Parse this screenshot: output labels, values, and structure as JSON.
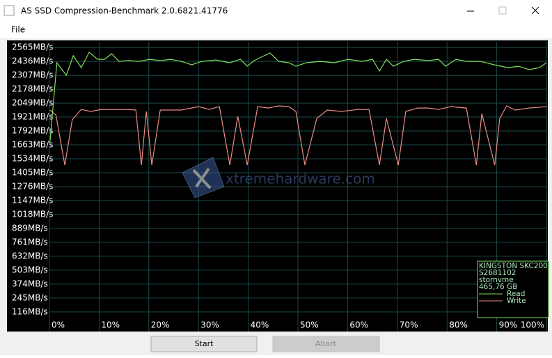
{
  "window": {
    "title": "AS SSD Compression-Benchmark 2.0.6821.41776",
    "menu": [
      "File"
    ],
    "buttons": [
      "Start",
      "Abort"
    ]
  },
  "chart_data": {
    "type": "line",
    "ylim": [
      51,
      2617
    ],
    "yticks": [
      {
        "value": 2565,
        "label": "2565MB/s"
      },
      {
        "value": 2436,
        "label": "2436MB/s"
      },
      {
        "value": 2307,
        "label": "2307MB/s"
      },
      {
        "value": 2178,
        "label": "2178MB/s"
      },
      {
        "value": 2049,
        "label": "2049MB/s"
      },
      {
        "value": 1921,
        "label": "1921MB/s"
      },
      {
        "value": 1792,
        "label": "1792MB/s"
      },
      {
        "value": 1663,
        "label": "1663MB/s"
      },
      {
        "value": 1534,
        "label": "1534MB/s"
      },
      {
        "value": 1405,
        "label": "1405MB/s"
      },
      {
        "value": 1276,
        "label": "1276MB/s"
      },
      {
        "value": 1147,
        "label": "1147MB/s"
      },
      {
        "value": 1018,
        "label": "1018MB/s"
      },
      {
        "value": 889,
        "label": "889MB/s"
      },
      {
        "value": 761,
        "label": "761MB/s"
      },
      {
        "value": 632,
        "label": "632MB/s"
      },
      {
        "value": 503,
        "label": "503MB/s"
      },
      {
        "value": 374,
        "label": "374MB/s"
      },
      {
        "value": 245,
        "label": "245MB/s"
      },
      {
        "value": 116,
        "label": "116MB/s"
      }
    ],
    "xlim": [
      0,
      100
    ],
    "xticks": [
      {
        "value": 0,
        "label": "0%"
      },
      {
        "value": 10,
        "label": "10%"
      },
      {
        "value": 20,
        "label": "20%"
      },
      {
        "value": 30,
        "label": "30%"
      },
      {
        "value": 40,
        "label": "40%"
      },
      {
        "value": 50,
        "label": "50%"
      },
      {
        "value": 60,
        "label": "60%"
      },
      {
        "value": 70,
        "label": "70%"
      },
      {
        "value": 80,
        "label": "80%"
      },
      {
        "value": 90,
        "label": "90%"
      },
      {
        "value": 100,
        "label": "100%"
      }
    ],
    "grid": true,
    "background": "#000000",
    "grid_color": "#1d4848",
    "series": [
      {
        "name": "Read",
        "color": "#7ee05a",
        "x": [
          0.1,
          1.5,
          3.4,
          4.8,
          6.4,
          8.0,
          9.7,
          11.1,
          12.5,
          14.0,
          16.0,
          18.1,
          20.2,
          22.3,
          24.4,
          26.5,
          28.6,
          30.7,
          33.5,
          36.3,
          38.4,
          39.8,
          41.2,
          42.6,
          44.4,
          46.1,
          48.2,
          49.6,
          51.7,
          54.5,
          57.3,
          60.1,
          62.9,
          65.0,
          66.4,
          67.8,
          69.2,
          71.3,
          73.4,
          76.2,
          78.3,
          79.7,
          81.8,
          83.9,
          86.7,
          89.5,
          92.3,
          94.4,
          96.5,
          98.6,
          100
        ],
        "values": [
          1682,
          2423,
          2307,
          2488,
          2378,
          2520,
          2455,
          2455,
          2507,
          2436,
          2443,
          2436,
          2455,
          2443,
          2455,
          2436,
          2404,
          2436,
          2449,
          2423,
          2455,
          2391,
          2443,
          2475,
          2513,
          2436,
          2423,
          2391,
          2423,
          2436,
          2423,
          2455,
          2436,
          2455,
          2346,
          2455,
          2391,
          2436,
          2455,
          2443,
          2455,
          2391,
          2455,
          2436,
          2436,
          2404,
          2378,
          2391,
          2359,
          2378,
          2423
        ]
      },
      {
        "name": "Write",
        "color": "#ec8d84",
        "x": [
          0.1,
          1.3,
          3.1,
          4.6,
          6.4,
          8.3,
          10.4,
          16.0,
          17.4,
          18.5,
          19.5,
          20.6,
          22.3,
          26.5,
          30.0,
          32.1,
          34.2,
          36.3,
          37.9,
          39.8,
          41.9,
          44.0,
          46.1,
          48.2,
          49.6,
          51.4,
          53.8,
          55.9,
          58.7,
          62.2,
          64.3,
          66.4,
          67.8,
          70.2,
          71.7,
          74.1,
          76.2,
          78.3,
          80.8,
          83.9,
          85.9,
          87.0,
          89.6,
          90.6,
          92.0,
          93.7,
          96.5,
          100
        ],
        "values": [
          1985,
          1940,
          1476,
          1895,
          1991,
          1972,
          1991,
          1991,
          1985,
          1476,
          1972,
          1476,
          1985,
          1985,
          2017,
          1991,
          2017,
          1476,
          1927,
          1476,
          2017,
          2004,
          2024,
          2017,
          1972,
          1476,
          1908,
          1985,
          1972,
          1991,
          1991,
          1476,
          1908,
          1476,
          1972,
          2004,
          2004,
          1991,
          2017,
          2004,
          1476,
          1953,
          1476,
          1908,
          2024,
          1985,
          2004,
          2017
        ]
      }
    ],
    "legend": {
      "position": "lower right",
      "lines": [
        "KINGSTON SKC200",
        "S2681102",
        "stornvme",
        "465,76 GB"
      ]
    },
    "watermark": "xtremehardware.com"
  }
}
